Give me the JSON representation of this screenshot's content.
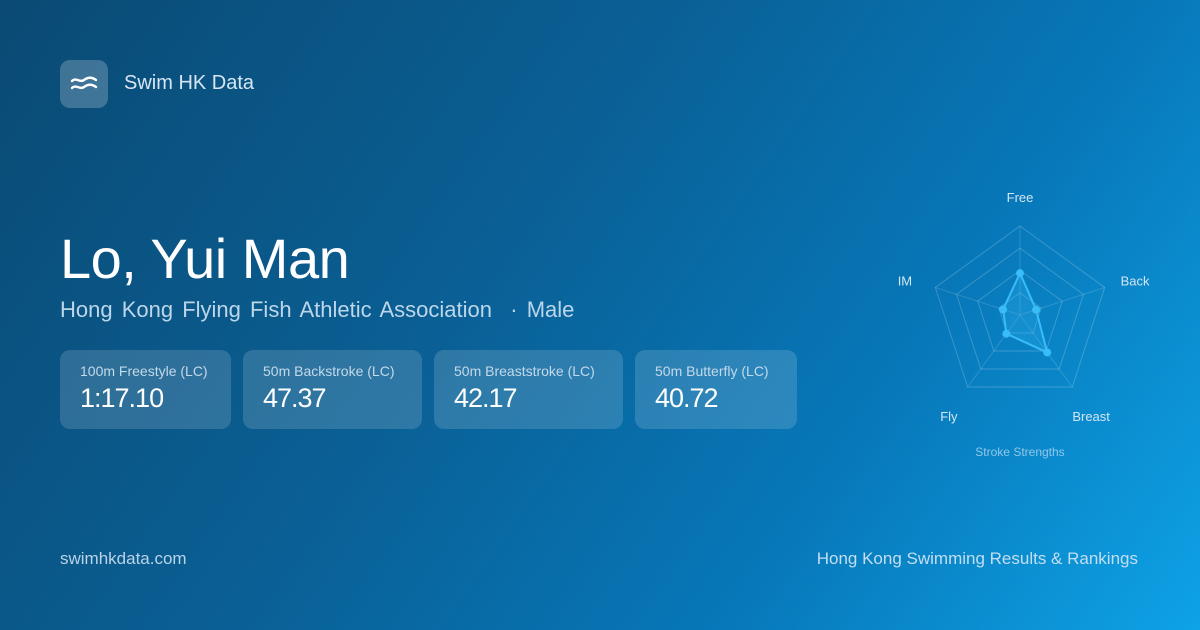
{
  "brand": {
    "name": "Swim HK Data",
    "icon": "waves-icon"
  },
  "profile": {
    "name": "Lo, Yui Man",
    "club": "Hong Kong Flying Fish Athletic Association",
    "separator": "·",
    "gender": "Male"
  },
  "cards": [
    {
      "label": "100m Freestyle (LC)",
      "value": "1:17.10"
    },
    {
      "label": "50m Backstroke (LC)",
      "value": "47.37"
    },
    {
      "label": "50m Breaststroke (LC)",
      "value": "42.17"
    },
    {
      "label": "50m Butterfly (LC)",
      "value": "40.72"
    }
  ],
  "chart_data": {
    "type": "radar",
    "title": "Stroke Strengths",
    "categories": [
      "Free",
      "Back",
      "Breast",
      "Fly",
      "IM"
    ],
    "values": [
      0.47,
      0.19,
      0.52,
      0.26,
      0.2
    ],
    "range": [
      0,
      1
    ],
    "grid_levels": 4,
    "color": "#38bdf8"
  },
  "footer": {
    "site": "swimhkdata.com",
    "tagline": "Hong Kong Swimming Results & Rankings"
  }
}
